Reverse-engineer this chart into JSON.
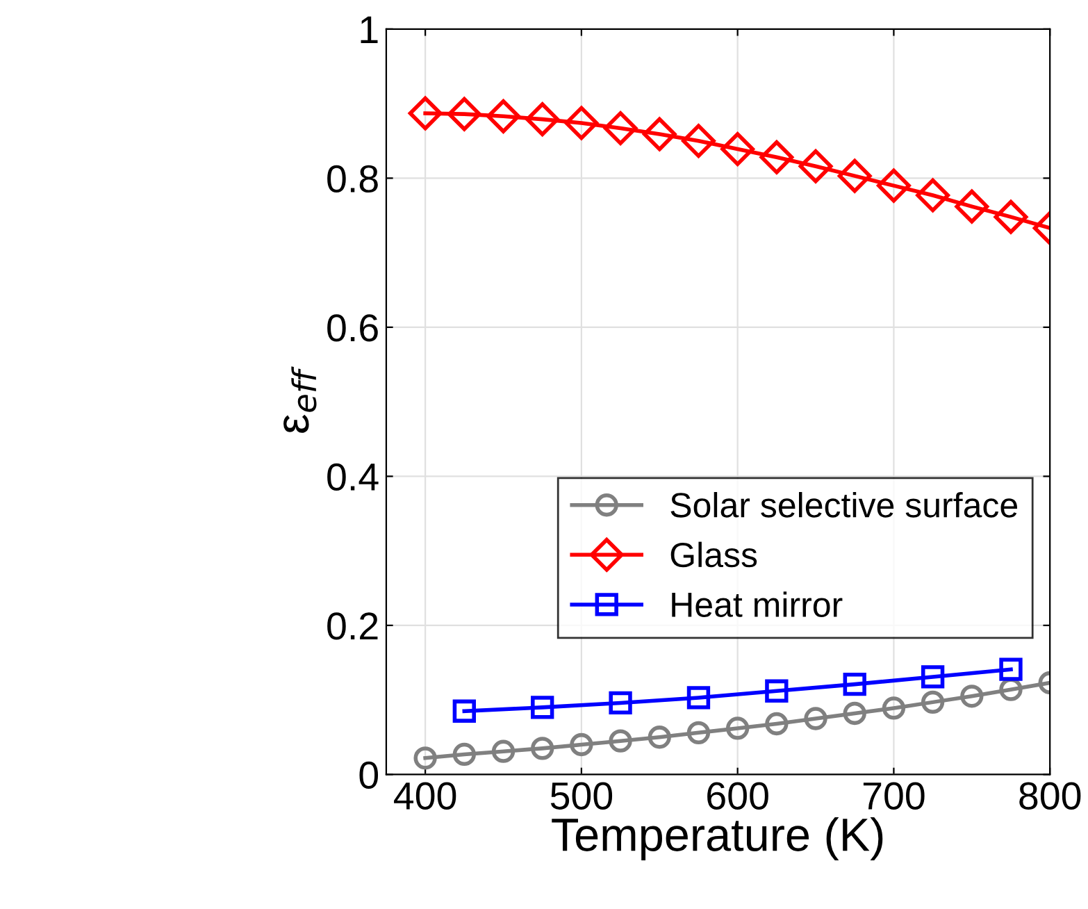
{
  "chart_data": {
    "type": "line",
    "xlabel": "Temperature (K)",
    "ylabel": "ε$_{eff}$",
    "xlim": [
      375,
      800
    ],
    "xticks": [
      400,
      500,
      600,
      700,
      800
    ],
    "ylim": [
      0,
      1
    ],
    "yticks": [
      0,
      0.2,
      0.4,
      0.6,
      0.8,
      1
    ],
    "grid": true,
    "legend": "bottom right",
    "line_style": "solid",
    "series": [
      {
        "name": "Solar selective surface",
        "color": "#808080",
        "marker": "circle",
        "x": [
          400,
          425,
          450,
          475,
          500,
          525,
          550,
          575,
          600,
          625,
          650,
          675,
          700,
          725,
          750,
          775,
          800
        ],
        "values": [
          0.022,
          0.027,
          0.031,
          0.035,
          0.04,
          0.045,
          0.05,
          0.056,
          0.062,
          0.068,
          0.075,
          0.082,
          0.089,
          0.097,
          0.105,
          0.114,
          0.123
        ]
      },
      {
        "name": "Glass",
        "color": "#ff0000",
        "marker": "diamond",
        "x": [
          400,
          425,
          450,
          475,
          500,
          525,
          550,
          575,
          600,
          625,
          650,
          675,
          700,
          725,
          750,
          775,
          800
        ],
        "values": [
          0.887,
          0.886,
          0.883,
          0.879,
          0.874,
          0.867,
          0.859,
          0.85,
          0.839,
          0.828,
          0.816,
          0.803,
          0.79,
          0.777,
          0.762,
          0.748,
          0.733
        ]
      },
      {
        "name": "Heat mirror",
        "color": "#0000ff",
        "marker": "square",
        "x": [
          425,
          475,
          525,
          575,
          625,
          675,
          725,
          775
        ],
        "values": [
          0.085,
          0.09,
          0.096,
          0.103,
          0.112,
          0.121,
          0.131,
          0.141
        ]
      }
    ]
  }
}
